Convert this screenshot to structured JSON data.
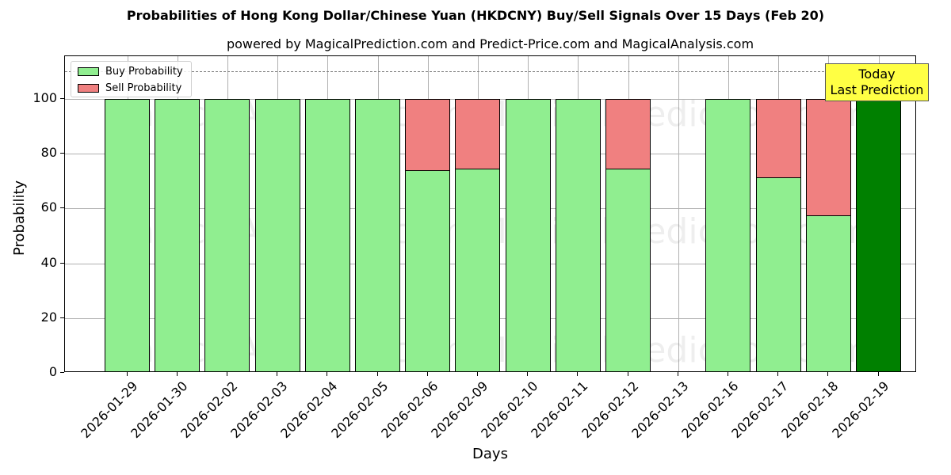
{
  "header": {
    "title": "Probabilities of Hong Kong Dollar/Chinese Yuan (HKDCNY) Buy/Sell Signals Over 15 Days (Feb 20)",
    "subtitle": "powered by MagicalPrediction.com and Predict-Price.com and MagicalAnalysis.com"
  },
  "axes": {
    "xlabel": "Days",
    "ylabel": "Probability",
    "yticks": [
      "0",
      "20",
      "40",
      "60",
      "80",
      "100"
    ]
  },
  "legend": {
    "buy_label": "Buy Probability",
    "sell_label": "Sell Probability"
  },
  "annotation": {
    "line1": "Today",
    "line2": "Last Prediction"
  },
  "watermarks": [
    "MagicalAnalysis.com",
    "MagicalPrediction.com"
  ],
  "colors": {
    "buy": "#90ee90",
    "sell": "#f08080",
    "today_buy": "#008000",
    "annotation_bg": "#ffff44",
    "threshold_line": "#808080"
  },
  "chart_data": {
    "type": "bar",
    "stacked": true,
    "title": "Probabilities of Hong Kong Dollar/Chinese Yuan (HKDCNY) Buy/Sell Signals Over 15 Days (Feb 20)",
    "subtitle": "powered by MagicalPrediction.com and Predict-Price.com and MagicalAnalysis.com",
    "xlabel": "Days",
    "ylabel": "Probability",
    "ylim": [
      0,
      115
    ],
    "yticks": [
      0,
      20,
      40,
      60,
      80,
      100
    ],
    "grid": true,
    "legend_position": "upper left",
    "threshold_line": 110,
    "categories": [
      "2026-01-29",
      "2026-01-30",
      "2026-02-02",
      "2026-02-03",
      "2026-02-04",
      "2026-02-05",
      "2026-02-06",
      "2026-02-09",
      "2026-02-10",
      "2026-02-11",
      "2026-02-12",
      "2026-02-13",
      "2026-02-16",
      "2026-02-17",
      "2026-02-18",
      "2026-02-19"
    ],
    "series": [
      {
        "name": "Buy Probability",
        "values": [
          100,
          100,
          100,
          100,
          100,
          100,
          74.0,
          74.6,
          100,
          100,
          74.6,
          0,
          100,
          71.4,
          57.5,
          100
        ]
      },
      {
        "name": "Sell Probability",
        "values": [
          0,
          0,
          0,
          0,
          0,
          0,
          26.0,
          25.4,
          0,
          0,
          25.4,
          0,
          0,
          28.6,
          42.5,
          0
        ]
      }
    ],
    "highlight": {
      "category": "2026-02-19",
      "label": "Today\nLast Prediction"
    }
  }
}
